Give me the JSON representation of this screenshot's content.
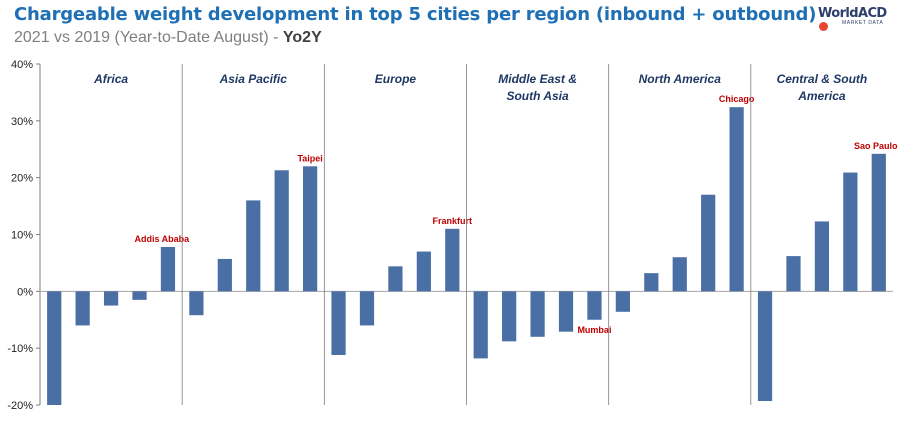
{
  "header": {
    "title": "Chargeable weight development in top 5 cities per region (inbound + outbound)",
    "subtitle_prefix": "2021 vs 2019 (Year-to-Date August) - ",
    "subtitle_bold": "Yo2Y"
  },
  "logo": {
    "name": "WorldACD",
    "tagline": "MARKET DATA"
  },
  "colors": {
    "bar": "#4a6fa5",
    "title": "#1f6fb5",
    "region_label": "#1f3864",
    "city_label": "#c00000",
    "axis": "#7f7f7f"
  },
  "chart_data": {
    "type": "bar",
    "title": "Chargeable weight development in top 5 cities per region (inbound + outbound)",
    "subtitle": "2021 vs 2019 (Year-to-Date August) - Yo2Y",
    "ylim": [
      -20,
      40
    ],
    "yticks": [
      40,
      30,
      20,
      10,
      0,
      -10,
      -20
    ],
    "ytick_labels": [
      "40%",
      "30%",
      "20%",
      "10%",
      "0%",
      "-10%",
      "-20%"
    ],
    "groups": [
      {
        "region": [
          "Africa"
        ],
        "values": [
          -20,
          -6,
          -2.5,
          -1.5,
          7.8
        ],
        "highlight": {
          "index": 4,
          "label": "Addis Ababa"
        }
      },
      {
        "region": [
          "Asia Pacific"
        ],
        "values": [
          -4.2,
          5.7,
          16,
          21.3,
          22
        ],
        "highlight": {
          "index": 4,
          "label": "Taipei"
        }
      },
      {
        "region": [
          "Europe"
        ],
        "values": [
          -11.2,
          -6,
          4.4,
          7,
          11
        ],
        "highlight": {
          "index": 4,
          "label": "Frankfurt"
        }
      },
      {
        "region": [
          "Middle East &",
          "South Asia"
        ],
        "values": [
          -11.8,
          -8.8,
          -8,
          -7.1,
          -5
        ],
        "highlight": {
          "index": 4,
          "label": "Mumbai"
        }
      },
      {
        "region": [
          "North America"
        ],
        "values": [
          -3.6,
          3.2,
          6,
          17,
          32.4
        ],
        "highlight": {
          "index": 4,
          "label": "Chicago"
        }
      },
      {
        "region": [
          "Central & South",
          "America"
        ],
        "values": [
          -19.3,
          6.2,
          12.3,
          20.9,
          24.2
        ],
        "highlight": {
          "index": 4,
          "label": "Sao Paulo"
        }
      }
    ]
  }
}
